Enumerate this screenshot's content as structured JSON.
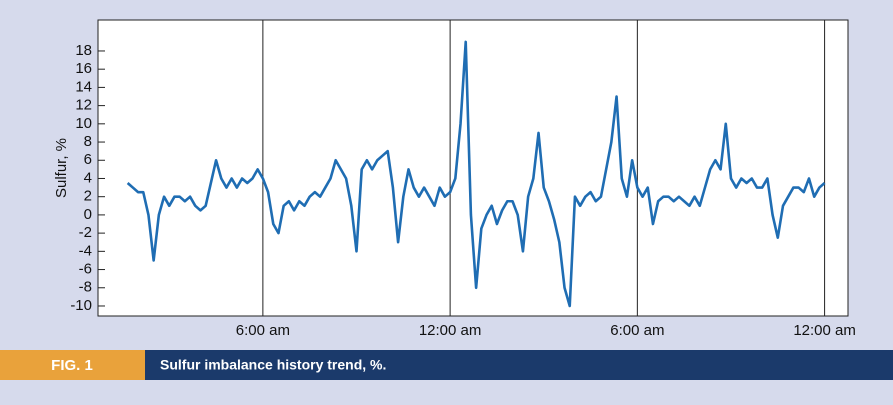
{
  "chart_data": {
    "type": "line",
    "figure_label": "FIG. 1",
    "caption": "Sulfur imbalance history trend, %.",
    "ylabel": "Sulfur, %",
    "xlim": [
      43,
      1485
    ],
    "xticks": [
      {
        "value": 360,
        "label": "6:00 am"
      },
      {
        "value": 720,
        "label": "12:00 am"
      },
      {
        "value": 1080,
        "label": "6:00 am"
      },
      {
        "value": 1440,
        "label": "12:00 am"
      }
    ],
    "ylim": [
      -11.1,
      21.4
    ],
    "yticks": [
      -10,
      -8,
      -6,
      -4,
      -2,
      0,
      2,
      4,
      6,
      8,
      10,
      12,
      14,
      16,
      18
    ],
    "xgrid": true,
    "ygrid": false,
    "x": [
      100,
      110,
      120,
      130,
      140,
      150,
      160,
      170,
      180,
      190,
      200,
      210,
      220,
      230,
      240,
      250,
      260,
      270,
      280,
      290,
      300,
      310,
      320,
      330,
      340,
      350,
      360,
      370,
      380,
      390,
      400,
      410,
      420,
      430,
      440,
      450,
      460,
      470,
      480,
      490,
      500,
      510,
      520,
      530,
      540,
      550,
      560,
      570,
      580,
      590,
      600,
      610,
      620,
      630,
      640,
      650,
      660,
      670,
      680,
      690,
      700,
      710,
      720,
      730,
      740,
      750,
      760,
      770,
      780,
      790,
      800,
      810,
      820,
      830,
      840,
      850,
      860,
      870,
      880,
      890,
      900,
      910,
      920,
      930,
      940,
      950,
      960,
      970,
      980,
      990,
      1000,
      1010,
      1020,
      1030,
      1040,
      1050,
      1060,
      1070,
      1080,
      1090,
      1100,
      1110,
      1120,
      1130,
      1140,
      1150,
      1160,
      1170,
      1180,
      1190,
      1200,
      1210,
      1220,
      1230,
      1240,
      1250,
      1260,
      1270,
      1280,
      1290,
      1300,
      1310,
      1320,
      1330,
      1340,
      1350,
      1360,
      1370,
      1380,
      1390,
      1400,
      1410,
      1420,
      1430,
      1440
    ],
    "series": [
      {
        "color": "#1f6db3",
        "values": [
          3.5,
          3,
          2.5,
          2.5,
          0,
          -5,
          0,
          2,
          1,
          2,
          2,
          1.5,
          2,
          1,
          0.5,
          1,
          3.5,
          6,
          4,
          3,
          4,
          3,
          4,
          3.5,
          4,
          5,
          4,
          2.5,
          -1,
          -2,
          1,
          1.5,
          0.5,
          1.5,
          1,
          2,
          2.5,
          2,
          3,
          4,
          6,
          5,
          4,
          1,
          -4,
          5,
          6,
          5,
          6,
          6.5,
          7,
          3,
          -3,
          2,
          5,
          3,
          2,
          3,
          2,
          1,
          3,
          2,
          2.5,
          4,
          10,
          19,
          0,
          -8,
          -1.5,
          0,
          1,
          -1,
          0.5,
          1.5,
          1.5,
          0,
          -4,
          2,
          4,
          9,
          3,
          1.5,
          -0.5,
          -3,
          -8,
          -10,
          2,
          1,
          2,
          2.5,
          1.5,
          2,
          5,
          8,
          13,
          4,
          2,
          6,
          3,
          2,
          3,
          -1,
          1.5,
          2,
          2,
          1.5,
          2,
          1.5,
          1,
          2,
          1,
          3,
          5,
          6,
          5,
          10,
          4,
          3,
          4,
          3.5,
          4,
          3,
          3,
          4,
          0,
          -2.5,
          1,
          2,
          3,
          3,
          2.5,
          4,
          2,
          3,
          3.5
        ]
      }
    ]
  }
}
